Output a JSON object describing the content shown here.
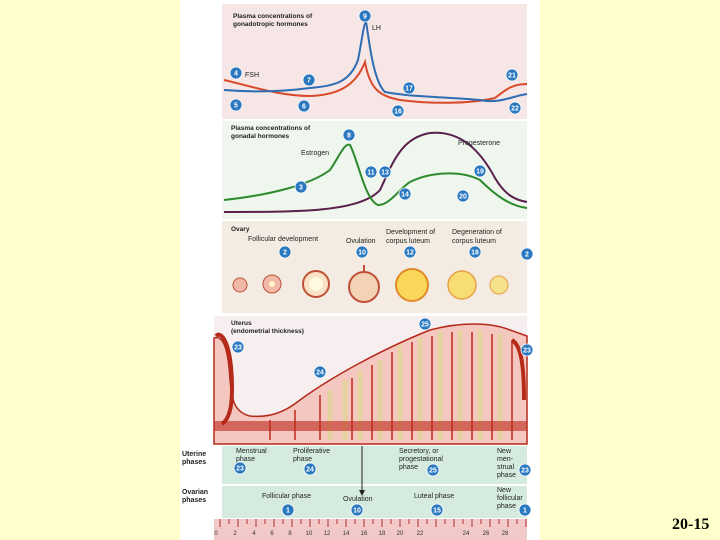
{
  "slide_number": "20-15",
  "gonadotropic_panel": {
    "title": "Plasma concentrations of gonadotropic hormones",
    "title_line1": "Plasma concentrations of",
    "title_line2": "gonadotropic hormones",
    "lh_label": "LH",
    "fsh_label": "FSH",
    "badges": [
      "9",
      "4",
      "7",
      "17",
      "21",
      "5",
      "6",
      "16",
      "22"
    ],
    "colors": {
      "lh": "#2f6db3",
      "fsh": "#d94a2a",
      "background": "#f6e6e6"
    }
  },
  "gonadal_panel": {
    "title_line1": "Plasma concentrations of",
    "title_line2": "gonadal hormones",
    "estrogen_label": "Estrogen",
    "progesterone_label": "Progesterone",
    "badges": [
      "8",
      "11",
      "13",
      "19",
      "3",
      "14",
      "20"
    ],
    "colors": {
      "estrogen": "#2e8a2e",
      "progesterone": "#5a1f4a",
      "background": "#eef6ee"
    }
  },
  "ovary_panel": {
    "title": "Ovary",
    "follicular_label": "Follicular development",
    "ovulation_label": "Ovulation",
    "development_label_line1": "Development of",
    "development_label_line2": "corpus luteum",
    "degeneration_label_line1": "Degeneration of",
    "degeneration_label_line2": "corpus luteum",
    "badges": [
      "2",
      "10",
      "12",
      "18",
      "2"
    ]
  },
  "uterus_panel": {
    "title_line1": "Uterus",
    "title_line2": "(endometrial thickness)",
    "badges": [
      "25",
      "23",
      "24",
      "23"
    ]
  },
  "uterine_phases": {
    "side_label_line1": "Uterine",
    "side_label_line2": "phases",
    "menstrual_line1": "Menstrual",
    "menstrual_line2": "phase",
    "proliferative_line1": "Proliferative",
    "proliferative_line2": "phase",
    "secretory_line1": "Secretory, or",
    "secretory_line2": "progestational",
    "secretory_line3": "phase",
    "new_menstrual_line1": "New",
    "new_menstrual_line2": "men-",
    "new_menstrual_line3": "strual",
    "new_menstrual_line4": "phase",
    "badges": [
      "23",
      "24",
      "25",
      "23"
    ]
  },
  "ovarian_phases": {
    "side_label_line1": "Ovarian",
    "side_label_line2": "phases",
    "follicular": "Follicular phase",
    "ovulation": "Ovulation",
    "luteal": "Luteal phase",
    "new_follicular_line1": "New",
    "new_follicular_line2": "follicular",
    "new_follicular_line3": "phase",
    "badges": [
      "1",
      "10",
      "15",
      "1"
    ]
  },
  "day_axis": {
    "ticks": [
      "0",
      "2",
      "4",
      "6",
      "8",
      "10",
      "12",
      "14",
      "16",
      "18",
      "20",
      "22",
      "24",
      "26",
      "28"
    ]
  }
}
